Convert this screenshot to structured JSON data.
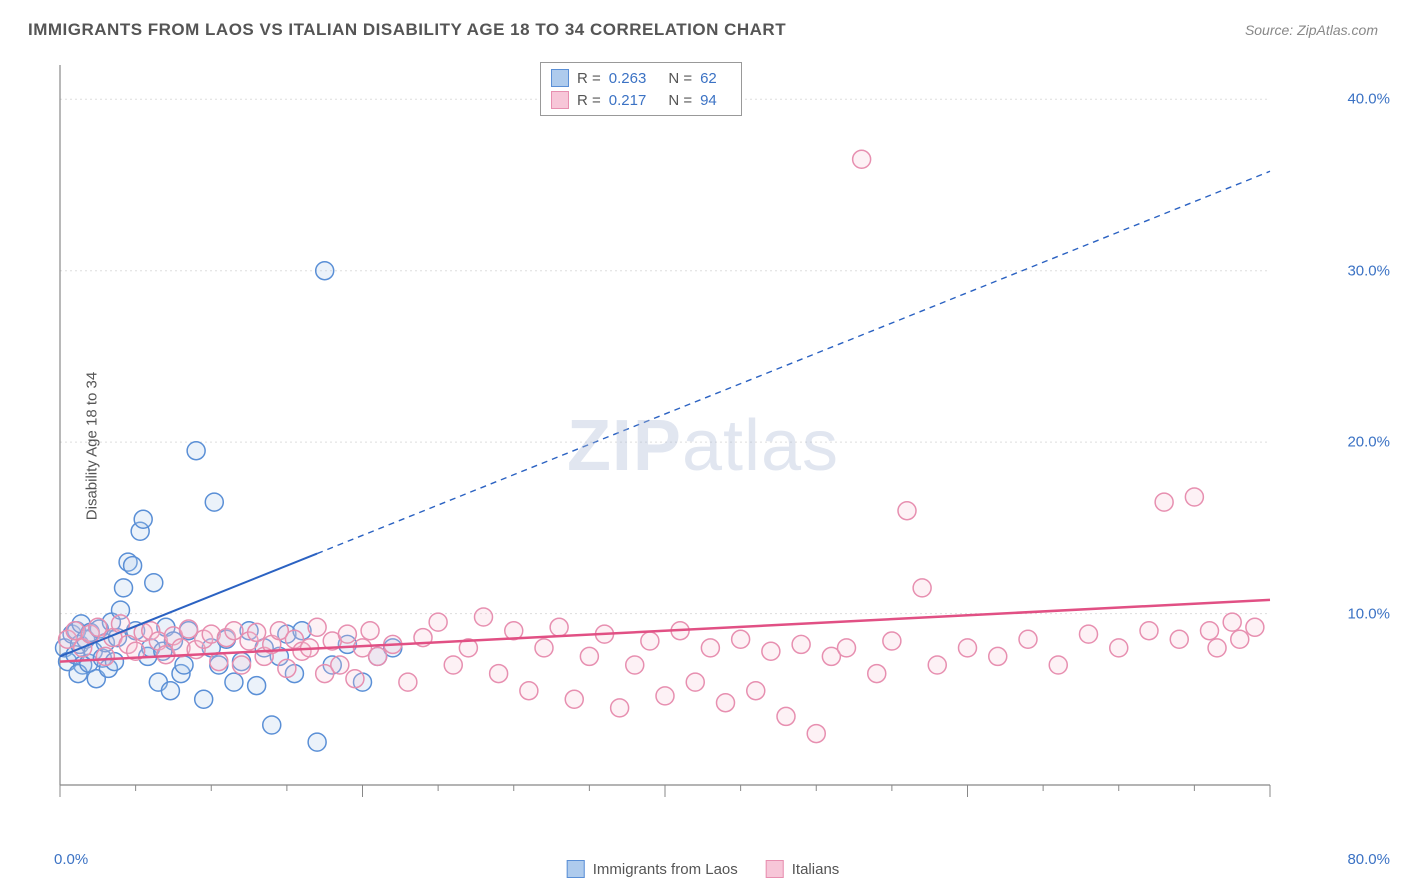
{
  "title": "IMMIGRANTS FROM LAOS VS ITALIAN DISABILITY AGE 18 TO 34 CORRELATION CHART",
  "source_prefix": "Source: ",
  "source": "ZipAtlas.com",
  "y_axis_label": "Disability Age 18 to 34",
  "watermark_a": "ZIP",
  "watermark_b": "atlas",
  "chart": {
    "type": "scatter",
    "xlim": [
      0,
      80
    ],
    "ylim": [
      0,
      42
    ],
    "background_color": "#ffffff",
    "grid_color": "#dddddd",
    "grid_dash": "2,3",
    "axis_color": "#888888",
    "tick_color": "#888888",
    "x_ticks_minor": [
      0,
      5,
      10,
      15,
      20,
      25,
      30,
      35,
      40,
      45,
      50,
      55,
      60,
      65,
      70,
      75,
      80
    ],
    "x_ticks_major": [
      0,
      20,
      40,
      60,
      80
    ],
    "y_gridlines": [
      10,
      20,
      30,
      40
    ],
    "y_tick_labels": [
      "10.0%",
      "20.0%",
      "30.0%",
      "40.0%"
    ],
    "x_min_label": "0.0%",
    "x_max_label": "80.0%",
    "y_label_color": "#3b72c4",
    "marker_radius": 9,
    "marker_stroke_width": 1.5,
    "marker_fill_opacity": 0.25,
    "series": [
      {
        "name": "Immigrants from Laos",
        "color_stroke": "#5a8fd6",
        "color_fill": "#aecbed",
        "trend_color": "#2b62c2",
        "trend_solid": [
          [
            0,
            7.5
          ],
          [
            17,
            13.5
          ]
        ],
        "trend_dash": [
          [
            17,
            13.5
          ],
          [
            80,
            35.8
          ]
        ],
        "trend_width": 2,
        "trend_dash_pattern": "6,5",
        "R_label": "R =",
        "R": "0.263",
        "N_label": "N =",
        "N": "62",
        "points": [
          [
            0.3,
            8.0
          ],
          [
            0.5,
            7.2
          ],
          [
            0.8,
            8.8
          ],
          [
            1.0,
            7.6
          ],
          [
            1.1,
            9.0
          ],
          [
            1.3,
            8.2
          ],
          [
            1.5,
            7.0
          ],
          [
            1.2,
            6.5
          ],
          [
            1.4,
            9.4
          ],
          [
            1.7,
            8.5
          ],
          [
            1.9,
            7.1
          ],
          [
            2.0,
            8.9
          ],
          [
            2.2,
            7.8
          ],
          [
            2.4,
            6.2
          ],
          [
            2.6,
            9.1
          ],
          [
            2.8,
            7.4
          ],
          [
            3.0,
            8.3
          ],
          [
            3.2,
            6.8
          ],
          [
            3.4,
            9.5
          ],
          [
            3.6,
            7.2
          ],
          [
            3.8,
            8.6
          ],
          [
            4.0,
            10.2
          ],
          [
            4.2,
            11.5
          ],
          [
            4.5,
            13.0
          ],
          [
            4.8,
            12.8
          ],
          [
            5.0,
            9.0
          ],
          [
            5.3,
            14.8
          ],
          [
            5.5,
            15.5
          ],
          [
            5.8,
            7.5
          ],
          [
            6.0,
            8.0
          ],
          [
            6.2,
            11.8
          ],
          [
            6.5,
            6.0
          ],
          [
            6.8,
            7.8
          ],
          [
            7.0,
            9.2
          ],
          [
            7.3,
            5.5
          ],
          [
            7.5,
            8.4
          ],
          [
            8.0,
            6.5
          ],
          [
            8.2,
            7.0
          ],
          [
            8.5,
            9.0
          ],
          [
            9.0,
            19.5
          ],
          [
            9.5,
            5.0
          ],
          [
            10.0,
            8.0
          ],
          [
            10.2,
            16.5
          ],
          [
            10.5,
            7.0
          ],
          [
            11.0,
            8.5
          ],
          [
            11.5,
            6.0
          ],
          [
            12.0,
            7.2
          ],
          [
            12.5,
            9.0
          ],
          [
            13.0,
            5.8
          ],
          [
            13.5,
            8.0
          ],
          [
            14.0,
            3.5
          ],
          [
            14.5,
            7.5
          ],
          [
            15.0,
            8.8
          ],
          [
            15.5,
            6.5
          ],
          [
            16.0,
            9.0
          ],
          [
            17.0,
            2.5
          ],
          [
            17.5,
            30.0
          ],
          [
            18.0,
            7.0
          ],
          [
            19.0,
            8.2
          ],
          [
            20.0,
            6.0
          ],
          [
            21.0,
            7.5
          ],
          [
            22.0,
            8.0
          ]
        ]
      },
      {
        "name": "Italians",
        "color_stroke": "#e78fb0",
        "color_fill": "#f7c6d8",
        "trend_color": "#e15084",
        "trend_solid": [
          [
            0,
            7.2
          ],
          [
            80,
            10.8
          ]
        ],
        "trend_dash": null,
        "trend_width": 2.5,
        "R_label": "R =",
        "R": "0.217",
        "N_label": "N =",
        "N": "94",
        "points": [
          [
            0.5,
            8.5
          ],
          [
            1.0,
            9.0
          ],
          [
            1.5,
            8.0
          ],
          [
            2.0,
            8.8
          ],
          [
            2.5,
            9.2
          ],
          [
            3.0,
            7.5
          ],
          [
            3.5,
            8.6
          ],
          [
            4.0,
            9.4
          ],
          [
            4.5,
            8.2
          ],
          [
            5.0,
            7.8
          ],
          [
            5.5,
            8.9
          ],
          [
            6.0,
            9.0
          ],
          [
            6.5,
            8.4
          ],
          [
            7.0,
            7.6
          ],
          [
            7.5,
            8.7
          ],
          [
            8.0,
            8.0
          ],
          [
            8.5,
            9.1
          ],
          [
            9.0,
            7.9
          ],
          [
            9.5,
            8.5
          ],
          [
            10.0,
            8.8
          ],
          [
            10.5,
            7.2
          ],
          [
            11.0,
            8.6
          ],
          [
            11.5,
            9.0
          ],
          [
            12.0,
            7.0
          ],
          [
            12.5,
            8.4
          ],
          [
            13.0,
            8.9
          ],
          [
            13.5,
            7.5
          ],
          [
            14.0,
            8.2
          ],
          [
            14.5,
            9.0
          ],
          [
            15.0,
            6.8
          ],
          [
            15.5,
            8.5
          ],
          [
            16.0,
            7.8
          ],
          [
            16.5,
            8.0
          ],
          [
            17.0,
            9.2
          ],
          [
            17.5,
            6.5
          ],
          [
            18.0,
            8.4
          ],
          [
            18.5,
            7.0
          ],
          [
            19.0,
            8.8
          ],
          [
            19.5,
            6.2
          ],
          [
            20.0,
            8.0
          ],
          [
            20.5,
            9.0
          ],
          [
            21.0,
            7.5
          ],
          [
            22.0,
            8.2
          ],
          [
            23.0,
            6.0
          ],
          [
            24.0,
            8.6
          ],
          [
            25.0,
            9.5
          ],
          [
            26.0,
            7.0
          ],
          [
            27.0,
            8.0
          ],
          [
            28.0,
            9.8
          ],
          [
            29.0,
            6.5
          ],
          [
            30.0,
            9.0
          ],
          [
            31.0,
            5.5
          ],
          [
            32.0,
            8.0
          ],
          [
            33.0,
            9.2
          ],
          [
            34.0,
            5.0
          ],
          [
            35.0,
            7.5
          ],
          [
            36.0,
            8.8
          ],
          [
            37.0,
            4.5
          ],
          [
            38.0,
            7.0
          ],
          [
            39.0,
            8.4
          ],
          [
            40.0,
            5.2
          ],
          [
            41.0,
            9.0
          ],
          [
            42.0,
            6.0
          ],
          [
            43.0,
            8.0
          ],
          [
            44.0,
            4.8
          ],
          [
            45.0,
            8.5
          ],
          [
            46.0,
            5.5
          ],
          [
            47.0,
            7.8
          ],
          [
            48.0,
            4.0
          ],
          [
            49.0,
            8.2
          ],
          [
            50.0,
            3.0
          ],
          [
            51.0,
            7.5
          ],
          [
            52.0,
            8.0
          ],
          [
            53.0,
            36.5
          ],
          [
            54.0,
            6.5
          ],
          [
            55.0,
            8.4
          ],
          [
            56.0,
            16.0
          ],
          [
            57.0,
            11.5
          ],
          [
            58.0,
            7.0
          ],
          [
            60.0,
            8.0
          ],
          [
            62.0,
            7.5
          ],
          [
            64.0,
            8.5
          ],
          [
            66.0,
            7.0
          ],
          [
            68.0,
            8.8
          ],
          [
            70.0,
            8.0
          ],
          [
            72.0,
            9.0
          ],
          [
            73.0,
            16.5
          ],
          [
            74.0,
            8.5
          ],
          [
            75.0,
            16.8
          ],
          [
            76.0,
            9.0
          ],
          [
            78.0,
            8.5
          ],
          [
            79.0,
            9.2
          ],
          [
            76.5,
            8.0
          ],
          [
            77.5,
            9.5
          ]
        ]
      }
    ]
  }
}
